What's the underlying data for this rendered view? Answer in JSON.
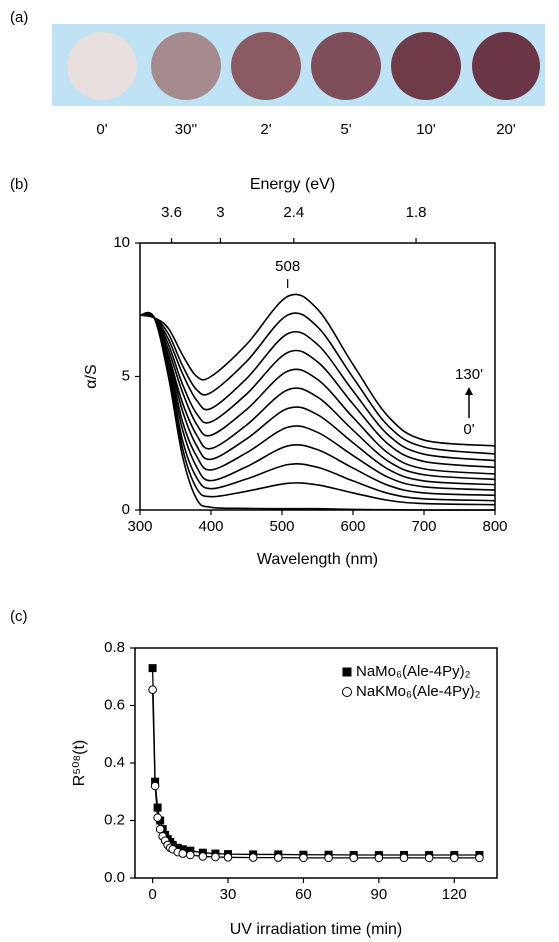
{
  "panel_labels": [
    "(a)",
    "(b)",
    "(c)"
  ],
  "photos": {
    "labels": [
      "0'",
      "30''",
      "2'",
      "5'",
      "10'",
      "20'"
    ]
  },
  "chart_data": [
    {
      "type": "line",
      "smooth": true,
      "x_label": "Wavelength (nm)",
      "y_label": "α/S",
      "x2_label": "Energy (eV)",
      "x": [
        300,
        320,
        340,
        360,
        380,
        400,
        450,
        508,
        550,
        600,
        650,
        700,
        800
      ],
      "series": [
        {
          "color": "#000000",
          "values": [
            7.3,
            7.2,
            5.0,
            2.0,
            0.4,
            0.1,
            0.06,
            0.05,
            0.05,
            0.02,
            0.01,
            0,
            0
          ]
        },
        {
          "color": "#000000",
          "values": [
            7.3,
            7.2,
            5.2,
            2.3,
            0.8,
            0.5,
            0.7,
            1.0,
            0.94,
            0.64,
            0.36,
            0.24,
            0.2
          ]
        },
        {
          "color": "#000000",
          "values": [
            7.3,
            7.2,
            5.3,
            2.6,
            1.2,
            0.8,
            1.16,
            1.7,
            1.6,
            1.09,
            0.62,
            0.42,
            0.35
          ]
        },
        {
          "color": "#000000",
          "values": [
            7.3,
            7.2,
            5.4,
            3.0,
            1.6,
            1.1,
            1.62,
            2.4,
            2.26,
            1.57,
            0.92,
            0.64,
            0.55
          ]
        },
        {
          "color": "#000000",
          "values": [
            7.3,
            7.2,
            5.6,
            3.3,
            2.0,
            1.5,
            2.14,
            3.1,
            2.91,
            2.04,
            1.22,
            0.87,
            0.75
          ]
        },
        {
          "color": "#000000",
          "values": [
            7.3,
            7.2,
            5.7,
            3.7,
            2.4,
            1.9,
            2.66,
            3.8,
            3.57,
            2.52,
            1.52,
            1.09,
            0.95
          ]
        },
        {
          "color": "#000000",
          "values": [
            7.3,
            7.2,
            5.8,
            4.0,
            2.8,
            2.3,
            3.18,
            4.5,
            4.23,
            2.99,
            1.82,
            1.32,
            1.15
          ]
        },
        {
          "color": "#000000",
          "values": [
            7.3,
            7.2,
            6.0,
            4.4,
            3.2,
            2.8,
            3.76,
            5.2,
            4.89,
            3.47,
            2.12,
            1.54,
            1.35
          ]
        },
        {
          "color": "#000000",
          "values": [
            7.3,
            7.2,
            6.2,
            4.7,
            3.6,
            3.3,
            4.34,
            5.9,
            5.55,
            3.97,
            2.46,
            1.82,
            1.6
          ]
        },
        {
          "color": "#000000",
          "values": [
            7.3,
            7.2,
            6.4,
            5.1,
            4.1,
            3.8,
            4.92,
            6.6,
            6.2,
            4.46,
            2.8,
            2.09,
            1.85
          ]
        },
        {
          "color": "#000000",
          "values": [
            7.3,
            7.2,
            6.6,
            5.4,
            4.5,
            4.4,
            5.56,
            7.3,
            6.86,
            4.96,
            3.14,
            2.36,
            2.1
          ]
        },
        {
          "color": "#000000",
          "values": [
            7.3,
            7.2,
            6.8,
            5.8,
            5.0,
            5.0,
            6.2,
            8.0,
            7.52,
            5.45,
            3.49,
            2.62,
            2.4
          ]
        }
      ],
      "xlim": [
        300,
        800
      ],
      "xticks": [
        300,
        400,
        500,
        600,
        700,
        800
      ],
      "ylim": [
        0,
        10
      ],
      "yticks": [
        0,
        5,
        10
      ],
      "x2ticks": [
        3.6,
        3,
        2.4,
        1.8
      ],
      "annotations": [
        "508",
        "130'",
        "0'"
      ]
    },
    {
      "type": "line",
      "smooth": false,
      "x_label": "UV irradiation time (min)",
      "y_label": "R⁵⁰⁸(t)",
      "x": [
        0,
        1,
        2,
        3,
        4,
        5,
        6,
        7,
        8,
        10,
        12,
        15,
        20,
        25,
        30,
        40,
        50,
        60,
        70,
        80,
        90,
        100,
        110,
        120,
        130
      ],
      "series": [
        {
          "name": "NaMo₆(Ale-4Py)₂",
          "color": "#000000",
          "marker": "square",
          "marker_fill": "#000000",
          "values": [
            0.73,
            0.335,
            0.245,
            0.2,
            0.17,
            0.15,
            0.135,
            0.125,
            0.115,
            0.105,
            0.1,
            0.095,
            0.088,
            0.085,
            0.083,
            0.082,
            0.082,
            0.081,
            0.081,
            0.08,
            0.08,
            0.08,
            0.08,
            0.08,
            0.08
          ]
        },
        {
          "name": "NaKMo₆(Ale-4Py)₂",
          "color": "#000000",
          "marker": "circle",
          "marker_fill": "#ffffff",
          "values": [
            0.655,
            0.32,
            0.21,
            0.17,
            0.145,
            0.13,
            0.115,
            0.105,
            0.1,
            0.09,
            0.085,
            0.08,
            0.075,
            0.073,
            0.072,
            0.071,
            0.071,
            0.07,
            0.07,
            0.07,
            0.07,
            0.07,
            0.07,
            0.07,
            0.07
          ]
        }
      ],
      "xlim": [
        -7,
        137
      ],
      "xticks": [
        0,
        30,
        60,
        90,
        120
      ],
      "ylim": [
        0,
        0.8
      ],
      "yticks": [
        {
          "value": 0,
          "label": "0.0"
        },
        0.2,
        0.4,
        0.6,
        0.8
      ],
      "legend": "upper right"
    }
  ]
}
